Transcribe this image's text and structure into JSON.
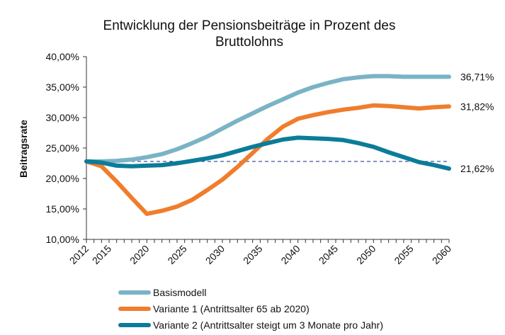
{
  "chart_data": {
    "type": "line",
    "title_lines": [
      "Entwicklung der Pensionsbeiträge in Prozent des",
      "Bruttolohns"
    ],
    "xlabel": "",
    "ylabel": "Beitragsrate",
    "ylim": [
      10,
      40
    ],
    "xlim": [
      2012,
      2060
    ],
    "y_ticks": [
      "10,00%",
      "15,00%",
      "20,00%",
      "25,00%",
      "30,00%",
      "35,00%",
      "40,00%"
    ],
    "x_ticks": [
      "2012",
      "2015",
      "2020",
      "2025",
      "2030",
      "2035",
      "2040",
      "2045",
      "2050",
      "2055",
      "2060"
    ],
    "grid": false,
    "legend_position": "bottom",
    "reference_line": {
      "y": 22.8,
      "style": "dashed",
      "color": "#2b3f8f"
    },
    "series": [
      {
        "name": "Basismodell",
        "color": "#7ab3c6",
        "end_label": "36,71%",
        "x": [
          2012,
          2014,
          2016,
          2018,
          2020,
          2022,
          2024,
          2026,
          2028,
          2030,
          2032,
          2034,
          2036,
          2038,
          2040,
          2042,
          2044,
          2046,
          2048,
          2050,
          2052,
          2054,
          2056,
          2058,
          2060
        ],
        "values": [
          22.8,
          22.8,
          22.9,
          23.1,
          23.5,
          24.0,
          24.8,
          25.8,
          26.9,
          28.2,
          29.5,
          30.7,
          31.9,
          33.0,
          34.1,
          35.0,
          35.7,
          36.3,
          36.6,
          36.8,
          36.8,
          36.7,
          36.7,
          36.7,
          36.7
        ]
      },
      {
        "name": "Variante 1 (Antrittsalter 65 ab 2020)",
        "color": "#f07d2c",
        "end_label": "31,82%",
        "x": [
          2012,
          2014,
          2016,
          2018,
          2020,
          2022,
          2024,
          2026,
          2028,
          2030,
          2032,
          2034,
          2036,
          2038,
          2040,
          2042,
          2044,
          2046,
          2048,
          2050,
          2052,
          2054,
          2056,
          2058,
          2060
        ],
        "values": [
          22.8,
          22.0,
          19.5,
          16.8,
          14.2,
          14.7,
          15.4,
          16.5,
          18.1,
          19.8,
          21.9,
          24.2,
          26.5,
          28.5,
          29.8,
          30.4,
          30.9,
          31.3,
          31.6,
          32.0,
          31.9,
          31.7,
          31.5,
          31.7,
          31.82
        ]
      },
      {
        "name": "Variante 2 (Antrittsalter steigt um 3 Monate pro Jahr)",
        "color": "#0b7c99",
        "end_label": "21,62%",
        "x": [
          2012,
          2014,
          2016,
          2018,
          2020,
          2022,
          2024,
          2026,
          2028,
          2030,
          2032,
          2034,
          2036,
          2038,
          2040,
          2042,
          2044,
          2046,
          2048,
          2050,
          2052,
          2054,
          2056,
          2058,
          2060
        ],
        "values": [
          22.8,
          22.6,
          22.1,
          22.0,
          22.1,
          22.2,
          22.5,
          22.9,
          23.3,
          23.8,
          24.5,
          25.2,
          25.8,
          26.4,
          26.7,
          26.6,
          26.5,
          26.3,
          25.8,
          25.2,
          24.3,
          23.5,
          22.7,
          22.2,
          21.62
        ]
      }
    ]
  }
}
